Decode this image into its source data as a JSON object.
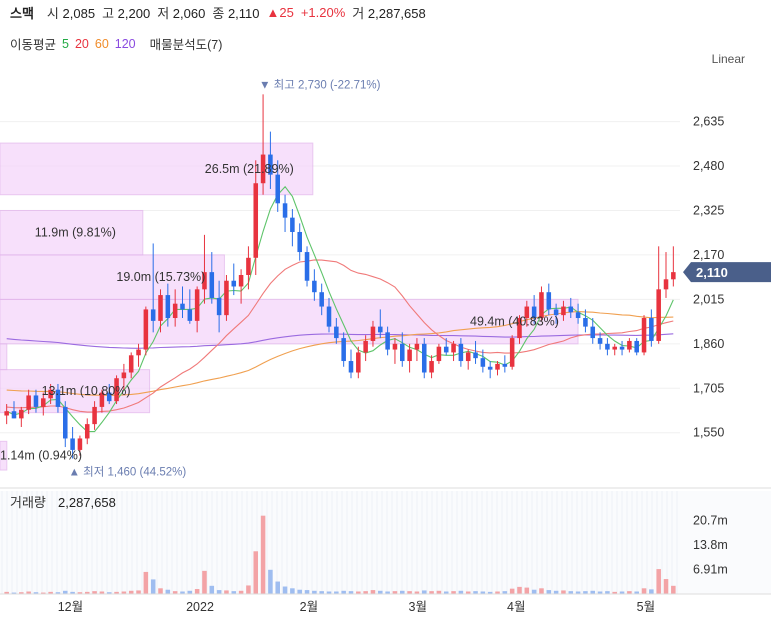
{
  "header": {
    "name": "스맥",
    "open_label": "시",
    "open": "2,085",
    "high_label": "고",
    "high": "2,200",
    "low_label": "저",
    "low": "2,060",
    "close_label": "종",
    "close": "2,110",
    "change": "▲25",
    "change_pct": "+1.20%",
    "volume_label": "거",
    "volume": "2,287,658"
  },
  "ma_legend": {
    "label": "이동평균",
    "items": [
      {
        "text": "5",
        "color": "#22aa44"
      },
      {
        "text": "20",
        "color": "#e8333f"
      },
      {
        "text": "60",
        "color": "#f08c2a"
      },
      {
        "text": "120",
        "color": "#8a4be0"
      }
    ],
    "profile_label": "매물분석도(7)"
  },
  "scale_label": "Linear",
  "colors": {
    "up": "#e8333f",
    "down": "#2a6ee8",
    "profile": "#f5d6fa",
    "profile_border": "#e2b3ec",
    "ma5": "#5ec46a",
    "ma20": "#f07a7a",
    "ma60": "#f0a050",
    "ma120": "#9b6be0",
    "price_tag": "#4a5f8a"
  },
  "chart_data": {
    "type": "candlestick",
    "price_axis": {
      "ticks": [
        "2,635",
        "2,480",
        "2,325",
        "2,170",
        "2,015",
        "1,860",
        "1,705",
        "1,550"
      ],
      "min": 1420,
      "max": 2780
    },
    "current_price": "2,110",
    "max_marker": "▼ 최고 2,730 (-22.71%)",
    "min_marker": "▲ 최저 1,460 (44.52%)",
    "time_axis": [
      "12월",
      "2022",
      "2월",
      "3월",
      "4월",
      "5월"
    ],
    "volume_label": "거래량",
    "volume_value": "2,287,658",
    "volume_axis": {
      "ticks": [
        "20.7m",
        "13.8m",
        "6.91m"
      ],
      "max": 25.0
    },
    "volume_profile": [
      {
        "price_low": 1420,
        "price_high": 1520,
        "width_frac": 0.01,
        "text": "1.14m (0.94%)"
      },
      {
        "price_low": 1620,
        "price_high": 1770,
        "width_frac": 0.22,
        "text": "13.1m (10.80%)"
      },
      {
        "price_low": 1770,
        "price_high": 1860,
        "width_frac": 0.01,
        "text": ""
      },
      {
        "price_low": 1860,
        "price_high": 2015,
        "width_frac": 0.85,
        "text": "49.4m (40.83%)"
      },
      {
        "price_low": 2015,
        "price_high": 2170,
        "width_frac": 0.33,
        "text": "19.0m (15.73%)"
      },
      {
        "price_low": 2170,
        "price_high": 2325,
        "width_frac": 0.21,
        "text": "11.9m (9.81%)"
      },
      {
        "price_low": 2380,
        "price_high": 2560,
        "width_frac": 0.46,
        "text": "26.5m (21.89%)"
      }
    ],
    "candles": [
      [
        1610,
        1650,
        1580,
        1625
      ],
      [
        1625,
        1660,
        1600,
        1600
      ],
      [
        1600,
        1640,
        1570,
        1630
      ],
      [
        1630,
        1700,
        1615,
        1680
      ],
      [
        1680,
        1700,
        1620,
        1640
      ],
      [
        1640,
        1690,
        1610,
        1670
      ],
      [
        1670,
        1720,
        1650,
        1700
      ],
      [
        1700,
        1720,
        1620,
        1640
      ],
      [
        1640,
        1660,
        1500,
        1530
      ],
      [
        1530,
        1570,
        1460,
        1490
      ],
      [
        1490,
        1540,
        1470,
        1530
      ],
      [
        1530,
        1600,
        1510,
        1580
      ],
      [
        1580,
        1660,
        1560,
        1640
      ],
      [
        1640,
        1700,
        1620,
        1690
      ],
      [
        1690,
        1720,
        1650,
        1660
      ],
      [
        1660,
        1750,
        1650,
        1740
      ],
      [
        1740,
        1790,
        1700,
        1760
      ],
      [
        1760,
        1830,
        1740,
        1820
      ],
      [
        1820,
        1860,
        1780,
        1840
      ],
      [
        1840,
        1990,
        1820,
        1980
      ],
      [
        1980,
        2210,
        1900,
        1940
      ],
      [
        1940,
        2050,
        1900,
        2030
      ],
      [
        2030,
        2070,
        1920,
        1950
      ],
      [
        1950,
        2050,
        1920,
        2000
      ],
      [
        2000,
        2060,
        1950,
        1980
      ],
      [
        1980,
        2050,
        1930,
        1940
      ],
      [
        1940,
        2060,
        1900,
        2050
      ],
      [
        2050,
        2240,
        2000,
        2110
      ],
      [
        2110,
        2180,
        2000,
        2020
      ],
      [
        2020,
        2080,
        1900,
        1960
      ],
      [
        1960,
        2100,
        1940,
        2080
      ],
      [
        2080,
        2140,
        2030,
        2060
      ],
      [
        2060,
        2120,
        2000,
        2100
      ],
      [
        2100,
        2200,
        2050,
        2160
      ],
      [
        2160,
        2500,
        2100,
        2420
      ],
      [
        2420,
        2730,
        2380,
        2520
      ],
      [
        2520,
        2600,
        2400,
        2450
      ],
      [
        2450,
        2500,
        2320,
        2350
      ],
      [
        2350,
        2380,
        2250,
        2300
      ],
      [
        2300,
        2330,
        2200,
        2250
      ],
      [
        2250,
        2280,
        2150,
        2180
      ],
      [
        2180,
        2200,
        2060,
        2080
      ],
      [
        2080,
        2120,
        2010,
        2040
      ],
      [
        2040,
        2070,
        1960,
        1990
      ],
      [
        1990,
        2020,
        1900,
        1920
      ],
      [
        1920,
        1950,
        1860,
        1880
      ],
      [
        1880,
        1900,
        1780,
        1800
      ],
      [
        1800,
        1840,
        1740,
        1760
      ],
      [
        1760,
        1850,
        1740,
        1830
      ],
      [
        1830,
        1890,
        1800,
        1870
      ],
      [
        1870,
        1940,
        1850,
        1920
      ],
      [
        1920,
        1980,
        1880,
        1900
      ],
      [
        1900,
        1920,
        1820,
        1840
      ],
      [
        1840,
        1880,
        1790,
        1860
      ],
      [
        1860,
        1900,
        1780,
        1800
      ],
      [
        1800,
        1860,
        1760,
        1840
      ],
      [
        1840,
        1880,
        1800,
        1860
      ],
      [
        1860,
        1880,
        1740,
        1760
      ],
      [
        1760,
        1820,
        1740,
        1800
      ],
      [
        1800,
        1860,
        1790,
        1850
      ],
      [
        1850,
        1880,
        1820,
        1830
      ],
      [
        1830,
        1870,
        1800,
        1860
      ],
      [
        1860,
        1880,
        1780,
        1800
      ],
      [
        1800,
        1840,
        1770,
        1830
      ],
      [
        1830,
        1870,
        1790,
        1810
      ],
      [
        1810,
        1840,
        1760,
        1780
      ],
      [
        1780,
        1800,
        1740,
        1770
      ],
      [
        1770,
        1800,
        1750,
        1790
      ],
      [
        1790,
        1820,
        1760,
        1780
      ],
      [
        1780,
        1890,
        1770,
        1880
      ],
      [
        1880,
        1960,
        1860,
        1950
      ],
      [
        1950,
        2010,
        1920,
        1990
      ],
      [
        1990,
        2030,
        1930,
        1950
      ],
      [
        1950,
        2060,
        1940,
        2040
      ],
      [
        2040,
        2070,
        1960,
        1980
      ],
      [
        1980,
        2000,
        1930,
        1960
      ],
      [
        1960,
        2010,
        1940,
        1990
      ],
      [
        1990,
        2020,
        1950,
        1970
      ],
      [
        1970,
        2000,
        1930,
        1950
      ],
      [
        1950,
        1980,
        1900,
        1920
      ],
      [
        1920,
        1950,
        1860,
        1880
      ],
      [
        1880,
        1900,
        1840,
        1860
      ],
      [
        1860,
        1880,
        1820,
        1840
      ],
      [
        1840,
        1860,
        1820,
        1850
      ],
      [
        1850,
        1870,
        1820,
        1840
      ],
      [
        1840,
        1880,
        1830,
        1870
      ],
      [
        1870,
        1880,
        1820,
        1830
      ],
      [
        1830,
        1960,
        1820,
        1950
      ],
      [
        1950,
        1980,
        1850,
        1870
      ],
      [
        1870,
        2200,
        1860,
        2050
      ],
      [
        2050,
        2180,
        2020,
        2085
      ],
      [
        2085,
        2200,
        2060,
        2110
      ]
    ],
    "volumes": [
      0.6,
      0.4,
      0.5,
      0.7,
      0.5,
      0.4,
      0.6,
      0.5,
      0.9,
      0.6,
      0.5,
      0.6,
      0.8,
      0.7,
      0.5,
      0.6,
      0.7,
      0.9,
      1.0,
      6.2,
      4.1,
      1.6,
      1.2,
      0.8,
      0.7,
      0.9,
      1.4,
      6.5,
      2.3,
      1.1,
      1.0,
      0.8,
      0.9,
      2.4,
      12.0,
      22.0,
      6.8,
      3.5,
      2.1,
      1.6,
      1.2,
      1.1,
      0.9,
      0.8,
      0.7,
      0.7,
      0.9,
      0.8,
      0.7,
      0.8,
      1.1,
      0.9,
      0.7,
      0.8,
      0.9,
      0.8,
      0.7,
      1.0,
      0.8,
      0.9,
      0.7,
      0.8,
      0.9,
      0.7,
      0.8,
      0.7,
      0.6,
      0.7,
      0.8,
      1.5,
      2.0,
      1.8,
      1.2,
      1.6,
      1.1,
      0.9,
      1.0,
      0.8,
      0.7,
      0.8,
      0.9,
      0.7,
      0.8,
      0.6,
      0.7,
      0.8,
      0.7,
      1.6,
      1.3,
      7.0,
      4.2,
      2.3
    ]
  }
}
